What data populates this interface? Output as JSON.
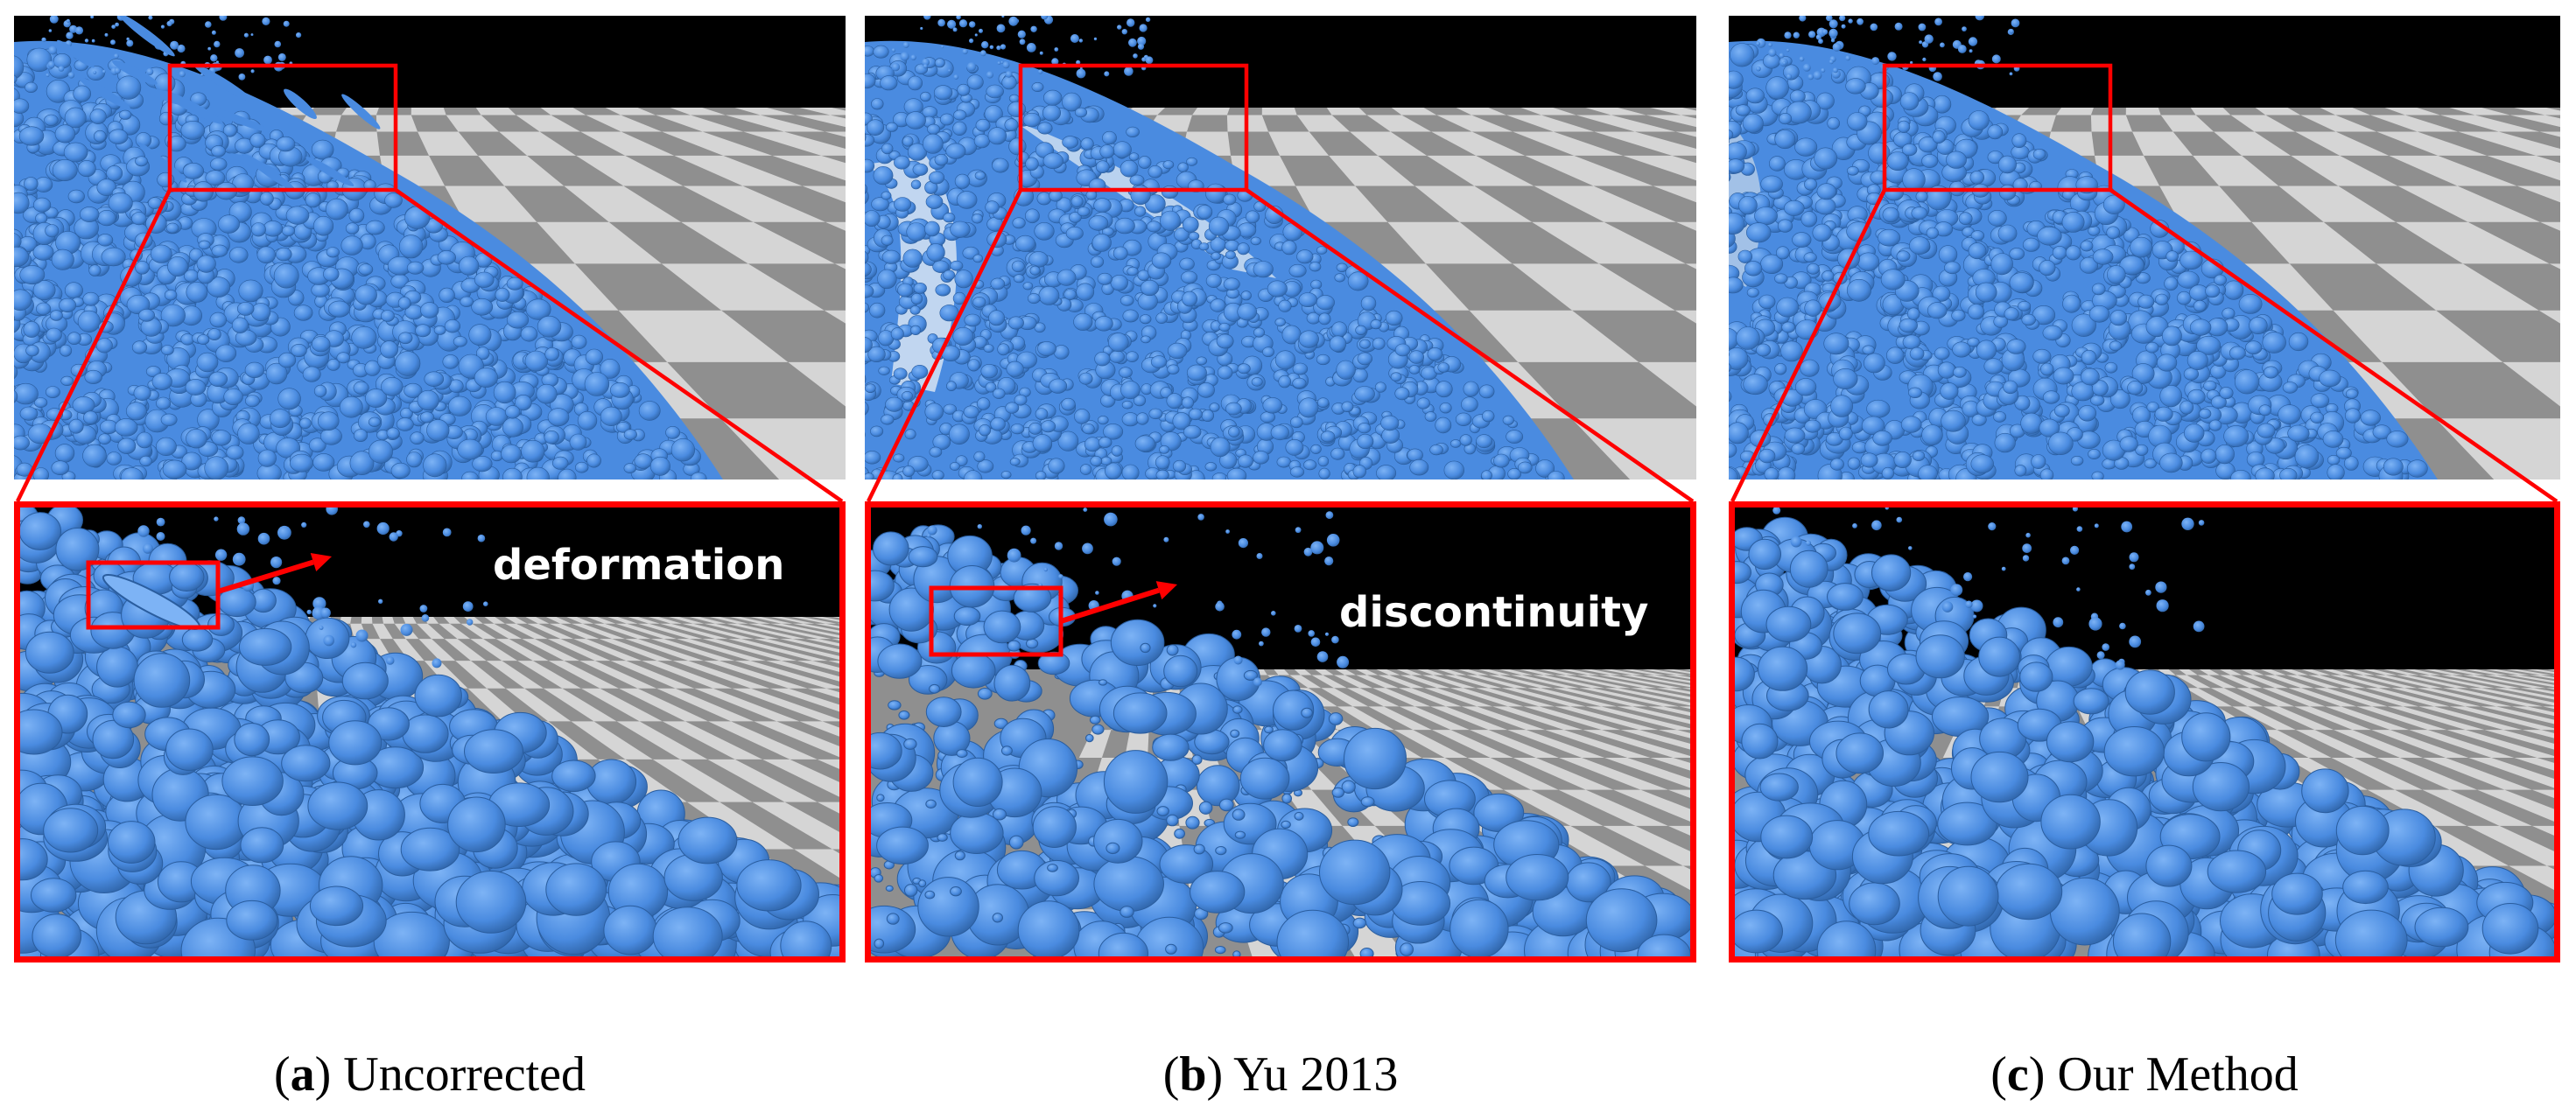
{
  "figure": {
    "colors": {
      "fluid": "#4a8be0",
      "fluid_dark": "#2a5d9e",
      "fluid_light": "#7db3f5",
      "highlight": "#ff0000",
      "sky": "#000000",
      "floor_light": "#d9d9d9",
      "floor_dark": "#8f8f8f",
      "caption_text": "#000000",
      "annotation_text": "#ffffff"
    },
    "panels": [
      {
        "id": "a",
        "caption_letter": "a",
        "caption_text": "Uncorrected",
        "annotation": "deformation",
        "artifact": "stretched-particles"
      },
      {
        "id": "b",
        "caption_letter": "b",
        "caption_text": "Yu 2013",
        "annotation": "discontinuity",
        "artifact": "scattered-particles"
      },
      {
        "id": "c",
        "caption_letter": "c",
        "caption_text": "Our Method",
        "annotation": "",
        "artifact": "none"
      }
    ]
  }
}
